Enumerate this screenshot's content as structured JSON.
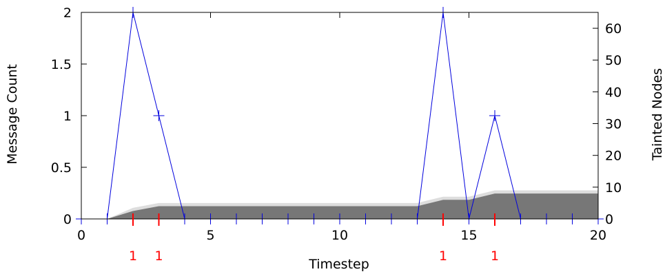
{
  "chart_data": {
    "type": "line",
    "xlabel": "Timestep",
    "ylabel": "Message Count",
    "y2label": "Tainted Nodes",
    "xlim": [
      0,
      20
    ],
    "ylim": [
      0,
      2
    ],
    "y2lim": [
      0,
      65
    ],
    "xticks": [
      "0",
      "5",
      "10",
      "15",
      "20"
    ],
    "yticks": [
      "0",
      "0.5",
      "1",
      "1.5",
      "2"
    ],
    "y2ticks": [
      "0",
      "10",
      "20",
      "30",
      "40",
      "50",
      "60"
    ],
    "series": [
      {
        "axis": "y",
        "style": "line-with-plus-markers",
        "color": "#0000dd",
        "x": [
          0,
          1,
          2,
          3,
          4,
          5,
          6,
          7,
          8,
          9,
          10,
          11,
          12,
          13,
          14,
          15,
          16,
          17,
          18,
          19,
          20
        ],
        "y": [
          0,
          0,
          2,
          1,
          0,
          0,
          0,
          0,
          0,
          0,
          0,
          0,
          0,
          0,
          2,
          0,
          1,
          0,
          0,
          0,
          0
        ]
      },
      {
        "axis": "y2",
        "style": "area",
        "color": "#dddddd",
        "x": [
          0,
          1,
          2,
          3,
          4,
          5,
          6,
          7,
          8,
          9,
          10,
          11,
          12,
          13,
          14,
          15,
          16,
          17,
          18,
          19,
          20
        ],
        "y": [
          0,
          0,
          3.5,
          5,
          5,
          5,
          5,
          5,
          5,
          5,
          5,
          5,
          5,
          5,
          7,
          7,
          9,
          9,
          9,
          9,
          9
        ]
      },
      {
        "axis": "y2",
        "style": "area",
        "color": "#777777",
        "x": [
          0,
          1,
          2,
          3,
          4,
          5,
          6,
          7,
          8,
          9,
          10,
          11,
          12,
          13,
          14,
          15,
          16,
          17,
          18,
          19,
          20
        ],
        "y": [
          0,
          0,
          2.5,
          4,
          4,
          4,
          4,
          4,
          4,
          4,
          4,
          4,
          4,
          4,
          6,
          6,
          8,
          8,
          8,
          8,
          8
        ]
      }
    ],
    "annotations": {
      "color": "#ff0000",
      "items": [
        {
          "x": 2,
          "label": "1"
        },
        {
          "x": 3,
          "label": "1"
        },
        {
          "x": 14,
          "label": "1"
        },
        {
          "x": 16,
          "label": "1"
        }
      ]
    }
  }
}
